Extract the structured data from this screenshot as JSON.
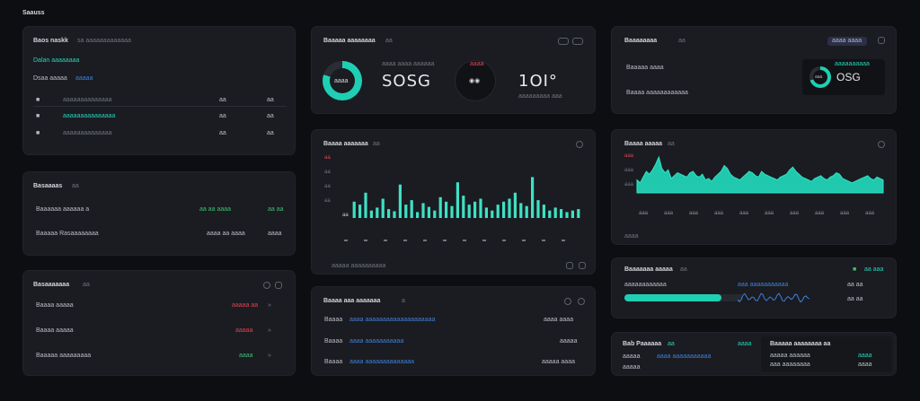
{
  "header": {
    "title": "Saauss"
  },
  "card_users": {
    "title": "Baos naskk",
    "subtitle": "sa aaaaaaaaaaaaa",
    "link": "Dalan aaaaaaaa",
    "sub_label": "Dsaa aaaaa",
    "sub_value": "aaaaa",
    "rows": [
      {
        "mark": "■",
        "label": "aaaaaaaaaaaaaa",
        "c1": "aa",
        "c2": "aa"
      },
      {
        "mark": "■",
        "label": "aaaaaaaaaaaaaaa",
        "c1": "aa",
        "c2": "aa"
      },
      {
        "mark": "■",
        "label": "aaaaaaaaaaaaaa",
        "c1": "aa",
        "c2": "aa"
      }
    ]
  },
  "card_balance": {
    "title": "Basaaaas",
    "tag": "aa",
    "rows": [
      {
        "label": "Baaaaaa aaaaaa a",
        "v1": "aa aa aaaa",
        "v2": "aa aa"
      },
      {
        "label": "Baaaaa Rasaaaaaaaa",
        "v1": "aaaa aa aaaa",
        "v2": "aaaa"
      }
    ]
  },
  "card_alerts": {
    "title": "Basaaaaaaa",
    "tag": "aa",
    "rows": [
      {
        "label": "Baaaa aaaaa",
        "value": "aaaaa aa",
        "value_color": "#e0434f"
      },
      {
        "label": "Baaaa aaaaa",
        "value": "aaaaa",
        "value_color": "#e0434f"
      },
      {
        "label": "Baaaaa aaaaaaaaa",
        "value": "aaaa",
        "value_color": "#3fbf72"
      }
    ]
  },
  "card_stats": {
    "title": "Baaaaa aaaaaaaa",
    "tag": "aa",
    "donut_label": "aaaa",
    "donut_percent": 80,
    "stat1_caption": "aaaa aaaa aaaaaa",
    "stat1_value": "SOSG",
    "stat2_caption": "aaaa",
    "stat2_value": "1OI°",
    "stat2_sub": "aaaaaaaaa aaa"
  },
  "card_bars": {
    "title": "Baaaa aaaaaaa",
    "tag": "aa",
    "y_labels": [
      "aa",
      "aa",
      "aa",
      "aa",
      "aa"
    ],
    "footer": "aaaaa aaaaaaaaaa",
    "chart_data": {
      "type": "bar",
      "title": "Baaaa aaaaaaa",
      "categories": [
        "1",
        "2",
        "3",
        "4",
        "5",
        "6",
        "7",
        "8",
        "9",
        "10",
        "11",
        "12",
        "13",
        "14",
        "15",
        "16",
        "17",
        "18",
        "19",
        "20",
        "21",
        "22",
        "23",
        "24",
        "25",
        "26",
        "27",
        "28",
        "29",
        "30",
        "31",
        "32",
        "33",
        "34",
        "35",
        "36",
        "37",
        "38",
        "39",
        "40"
      ],
      "values": [
        22,
        18,
        34,
        10,
        14,
        26,
        12,
        9,
        45,
        18,
        24,
        8,
        20,
        15,
        10,
        28,
        22,
        16,
        48,
        30,
        18,
        22,
        26,
        14,
        10,
        18,
        22,
        26,
        34,
        20,
        16,
        55,
        24,
        18,
        10,
        14,
        12,
        8,
        10,
        12
      ],
      "ylim": [
        0,
        70
      ]
    }
  },
  "card_area": {
    "title": "Baaaa aaaaa",
    "tag": "aa",
    "y_labels": [
      "aaa",
      "aaa",
      "aaa"
    ],
    "x_labels": [
      "aaa",
      "aaa",
      "aaa",
      "aaa",
      "aaa",
      "aaa",
      "aaa",
      "aaa",
      "aaa",
      "aaa"
    ],
    "footer": "aaaa",
    "chart_data": {
      "type": "area",
      "title": "Baaaa aaaaa",
      "values": [
        18,
        14,
        22,
        30,
        26,
        32,
        40,
        50,
        34,
        28,
        32,
        20,
        24,
        28,
        26,
        24,
        22,
        28,
        30,
        24,
        22,
        26,
        18,
        20,
        16,
        22,
        26,
        30,
        38,
        34,
        26,
        22,
        20,
        18,
        22,
        26,
        30,
        28,
        24,
        22,
        30,
        26,
        24,
        22,
        20,
        18,
        22,
        24,
        26,
        32,
        36,
        30,
        26,
        22,
        20,
        18,
        16,
        20,
        22,
        24,
        20,
        18,
        22,
        24,
        28,
        26,
        20,
        18,
        16,
        14,
        16,
        18,
        20,
        22,
        24,
        20,
        18,
        22,
        20,
        18
      ],
      "ylim": [
        0,
        60
      ]
    }
  },
  "card_list": {
    "title": "Baaaa aaa aaaaaaa",
    "tag": "a",
    "rows": [
      {
        "label": "Baaaa",
        "mid": "aaaa aaaaaaaaaaaaaaaaaaaa",
        "value": "aaaa aaaa"
      },
      {
        "label": "Baaaa",
        "mid": "aaaa aaaaaaaaaaa",
        "value": "aaaaa"
      },
      {
        "label": "Baaaa",
        "mid": "aaaa aaaaaaaaaaaaaa",
        "value": "aaaaa aaaa"
      }
    ]
  },
  "card_summary": {
    "title": "Baaaaaaaa",
    "tag": "aa",
    "pill": "aaaa aaaa",
    "row1_label": "Baaaaa aaaa",
    "row2_label": "Baaaa aaaaaaaaaaaa",
    "donut_value": "aaa",
    "big_value": "OSG",
    "mini_caption": "aaaaaaaaaa",
    "donut_percent": 70
  },
  "card_progress": {
    "title": "Baaaaaaa aaaaa",
    "tag": "aa",
    "left_label": "aaaaaaaaaaaa",
    "middle_label": "aaa aaaaaaaaaaa",
    "right_values": [
      "aa aaa",
      "aa aa",
      "aa aa"
    ],
    "progress_percent": 82
  },
  "card_bottom": {
    "title": "Bab Paaaaaa",
    "tag": "aa",
    "right_title": "Baaaaa aaaaaaaa aa",
    "left_rows": [
      "aaaaa",
      "aaaaa"
    ],
    "mid_link": "aaaa aaaaaaaaaaa",
    "right_rows": [
      "aaaaa aaaaaa",
      "aaa aaaaaaaa",
      "aaaa",
      "aaaa"
    ],
    "right_mark": "aaaa"
  }
}
